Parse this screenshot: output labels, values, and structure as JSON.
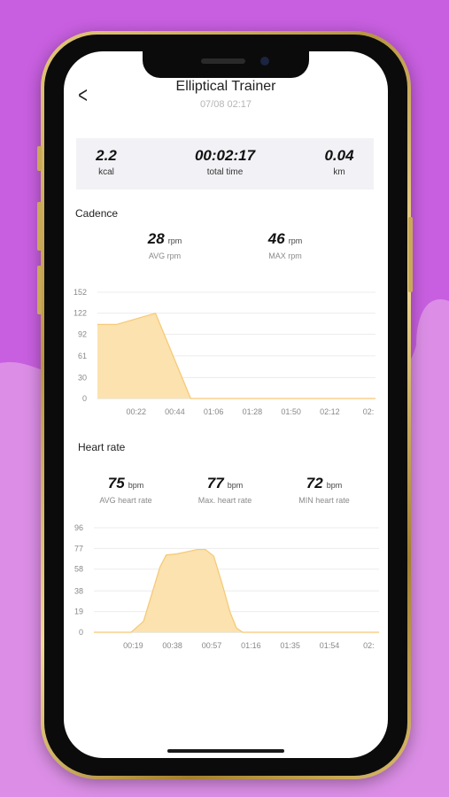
{
  "header": {
    "title": "Elliptical Trainer",
    "subtitle": "07/08 02:17"
  },
  "summary": {
    "calories": {
      "value": "2.2",
      "label": "kcal"
    },
    "time": {
      "value": "00:02:17",
      "label": "total time"
    },
    "distance": {
      "value": "0.04",
      "label": "km"
    }
  },
  "cadence": {
    "title": "Cadence",
    "avg": {
      "value": "28",
      "unit": "rpm",
      "label": "AVG rpm"
    },
    "max": {
      "value": "46",
      "unit": "rpm",
      "label": "MAX rpm"
    }
  },
  "heart": {
    "title": "Heart rate",
    "avg": {
      "value": "75",
      "unit": "bpm",
      "label": "AVG heart rate"
    },
    "max": {
      "value": "77",
      "unit": "bpm",
      "label": "Max. heart rate"
    },
    "min": {
      "value": "72",
      "unit": "bpm",
      "label": "MIN heart rate"
    }
  },
  "colors": {
    "fill": "#fbe2ae",
    "stroke": "#f6c873",
    "grid": "#ececec",
    "axis": "#888888"
  },
  "chart_data": [
    {
      "type": "area",
      "y_ticks": [
        0,
        30,
        61,
        92,
        122,
        152
      ],
      "ylim": [
        0,
        152
      ],
      "x_ticks": [
        "00:22",
        "00:44",
        "01:06",
        "01:28",
        "01:50",
        "02:12",
        "02:"
      ],
      "x_ticks_t": [
        22,
        44,
        66,
        88,
        110,
        132,
        154
      ],
      "xlim": [
        0,
        158
      ],
      "x": [
        0,
        11,
        33,
        53,
        55,
        158
      ],
      "values": [
        106,
        106,
        122,
        0,
        0,
        0
      ]
    },
    {
      "type": "area",
      "y_ticks": [
        0,
        19,
        38,
        58,
        77,
        96
      ],
      "ylim": [
        0,
        96
      ],
      "x_ticks": [
        "00:19",
        "00:38",
        "00:57",
        "01:16",
        "01:35",
        "01:54",
        "02:"
      ],
      "x_ticks_t": [
        19,
        38,
        57,
        76,
        95,
        114,
        133
      ],
      "xlim": [
        0,
        138
      ],
      "x": [
        0,
        18,
        24,
        28,
        32,
        35,
        40,
        45,
        50,
        54,
        58,
        62,
        66,
        69,
        72,
        138
      ],
      "values": [
        0,
        0,
        10,
        35,
        60,
        71,
        72,
        74,
        76,
        76,
        70,
        45,
        18,
        4,
        0,
        0
      ]
    }
  ]
}
